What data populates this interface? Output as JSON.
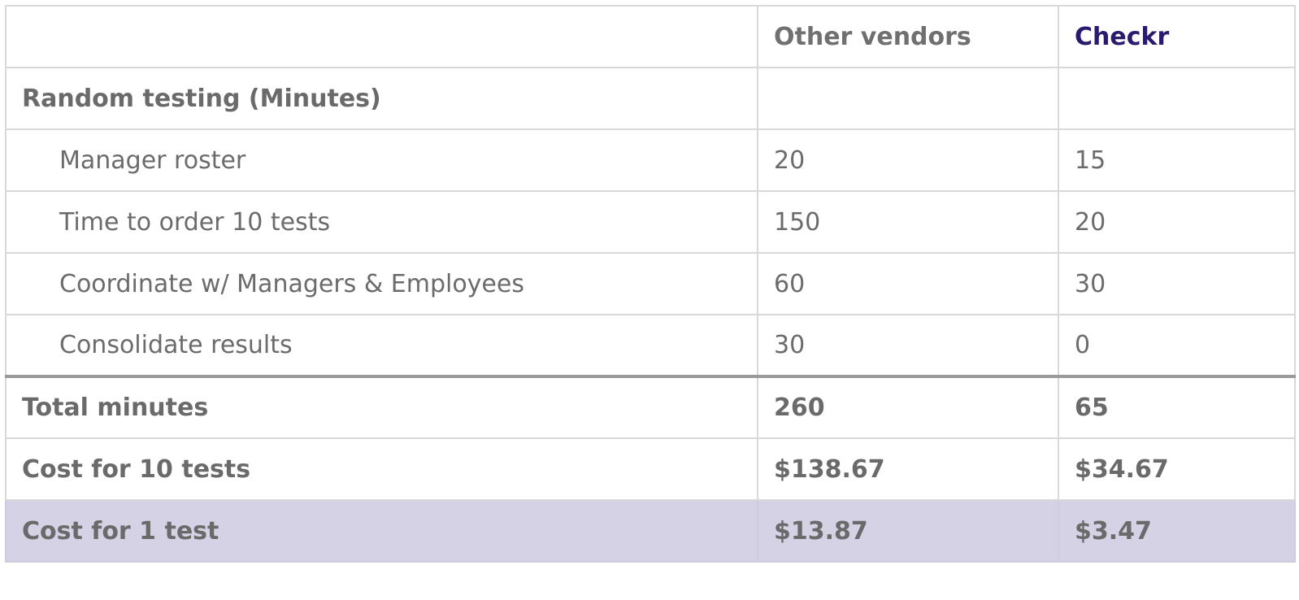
{
  "header": {
    "blank": "",
    "other_vendors": "Other vendors",
    "checkr": "Checkr"
  },
  "section": {
    "label": "Random testing (Minutes)"
  },
  "rows": [
    {
      "label": "Manager roster",
      "other": "20",
      "checkr": "15"
    },
    {
      "label": "Time to order 10 tests",
      "other": "150",
      "checkr": "20"
    },
    {
      "label": "Coordinate w/ Managers & Employees",
      "other": "60",
      "checkr": "30"
    },
    {
      "label": "Consolidate results",
      "other": "30",
      "checkr": "0"
    }
  ],
  "totals": {
    "total_minutes": {
      "label": "Total minutes",
      "other": "260",
      "checkr": "65"
    },
    "cost_10": {
      "label": "Cost for 10 tests",
      "other": "$138.67",
      "checkr": "$34.67"
    },
    "cost_1": {
      "label": "Cost for 1 test",
      "other": "$13.87",
      "checkr": "$3.47"
    }
  },
  "colors": {
    "checkr_brand": "#2b1a6e",
    "highlight_row": "#d6d2e6"
  }
}
